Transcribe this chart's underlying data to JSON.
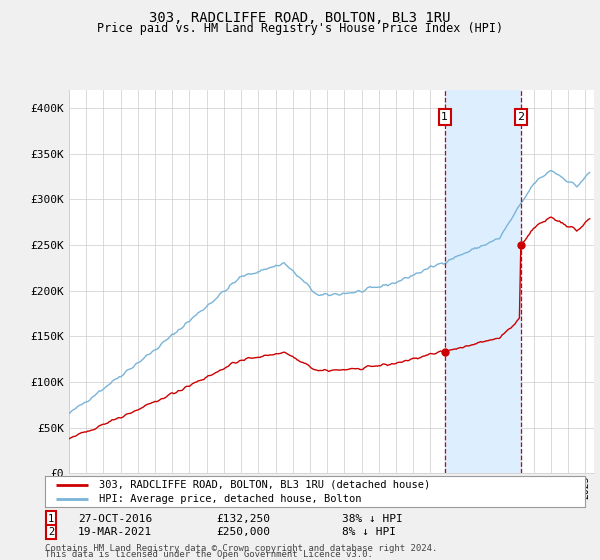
{
  "title": "303, RADCLIFFE ROAD, BOLTON, BL3 1RU",
  "subtitle": "Price paid vs. HM Land Registry's House Price Index (HPI)",
  "ylim": [
    0,
    420000
  ],
  "yticks": [
    0,
    50000,
    100000,
    150000,
    200000,
    250000,
    300000,
    350000,
    400000
  ],
  "ytick_labels": [
    "£0",
    "£50K",
    "£100K",
    "£150K",
    "£200K",
    "£250K",
    "£300K",
    "£350K",
    "£400K"
  ],
  "hpi_color": "#7ab4d8",
  "price_color": "#cc0000",
  "shade_color": "#ddeeff",
  "sale1_year": 2016.833,
  "sale1_price": 132250,
  "sale1_label": "1",
  "sale2_year": 2021.25,
  "sale2_price": 250000,
  "sale2_label": "2",
  "sale1_date": "27-OCT-2016",
  "sale1_hpi_pct": "38% ↓ HPI",
  "sale2_date": "19-MAR-2021",
  "sale2_hpi_pct": "8% ↓ HPI",
  "legend_label1": "303, RADCLIFFE ROAD, BOLTON, BL3 1RU (detached house)",
  "legend_label2": "HPI: Average price, detached house, Bolton",
  "footnote1": "Contains HM Land Registry data © Crown copyright and database right 2024.",
  "footnote2": "This data is licensed under the Open Government Licence v3.0.",
  "background_color": "#f0f0f0",
  "plot_bg_color": "#ffffff",
  "xlim_start": 1995,
  "xlim_end": 2025.5
}
